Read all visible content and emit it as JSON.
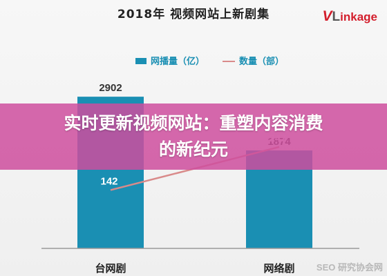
{
  "chart_data": {
    "type": "bar",
    "title": "2018年 视频网站上新剧集",
    "categories": [
      "台网剧",
      "网络剧"
    ],
    "series": [
      {
        "name": "网播量（亿）",
        "kind": "bar",
        "values": [
          2902,
          1874
        ],
        "color": "#1a8fb3"
      },
      {
        "name": "数量（部）",
        "kind": "line",
        "values": [
          142,
          247
        ],
        "color": "#d98a8a"
      }
    ],
    "legend_placement": "top-center",
    "grid": false,
    "ylim_bar": [
      0,
      3300
    ],
    "ylim_line": [
      0,
      420
    ]
  },
  "logo_text": {
    "v": "V",
    "l": "L",
    "rest": "inkage"
  },
  "overlay": {
    "line1": "实时更新视频网站：重塑内容消费",
    "line2": "的新纪元"
  },
  "watermark": "SEO 研究协会网"
}
